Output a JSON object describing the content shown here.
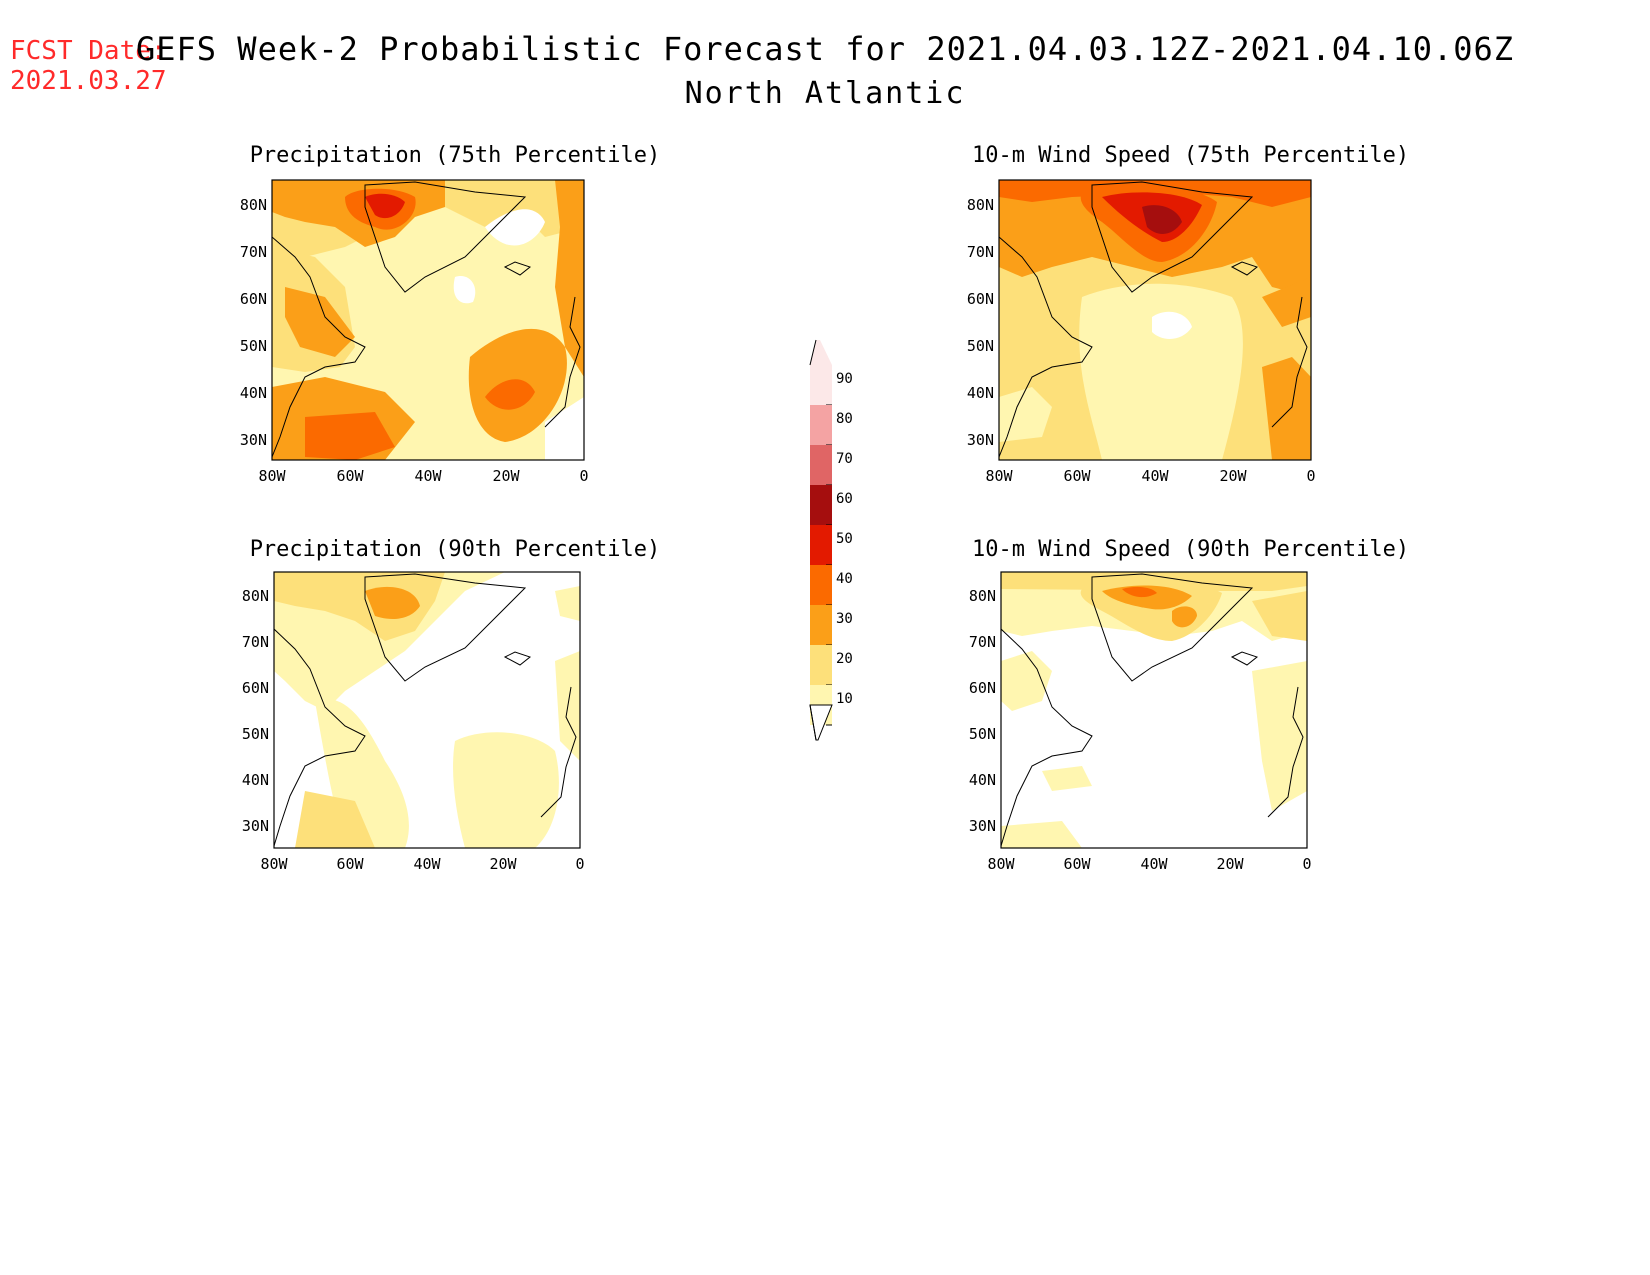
{
  "fcst_date": {
    "label": "FCST Date:",
    "value": "2021.03.27"
  },
  "title": "GEFS Week-2 Probabilistic Forecast for 2021.04.03.12Z-2021.04.10.06Z",
  "subtitle": "North Atlantic",
  "panels": [
    {
      "title": "Precipitation (75th Percentile)"
    },
    {
      "title": "10-m Wind Speed (75th Percentile)"
    },
    {
      "title": "Precipitation (90th Percentile)"
    },
    {
      "title": "10-m Wind Speed (90th Percentile)"
    }
  ],
  "axes": {
    "lat_labels": [
      "80N",
      "70N",
      "60N",
      "50N",
      "40N",
      "30N"
    ],
    "lon_labels": [
      "80W",
      "60W",
      "40W",
      "20W",
      "0"
    ]
  },
  "colorbar": {
    "levels": [
      "90",
      "80",
      "70",
      "60",
      "50",
      "40",
      "30",
      "20",
      "10"
    ],
    "colors": [
      "#fce8e8",
      "#f4a3a3",
      "#e06565",
      "#a50e0e",
      "#e31a00",
      "#fb6a00",
      "#fb9f18",
      "#fde07a",
      "#fff6b0"
    ]
  }
}
